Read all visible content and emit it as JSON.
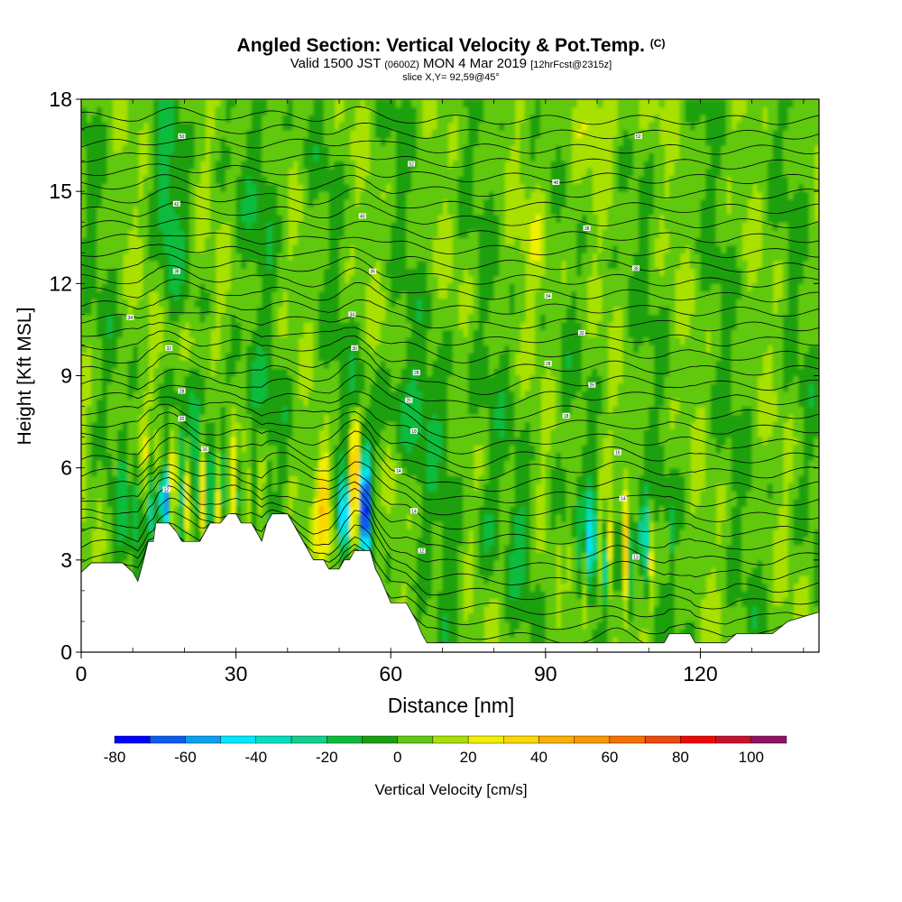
{
  "header": {
    "title": "Angled Section: Vertical Velocity & Pot.Temp.",
    "title_unit": "(C)",
    "valid_prefix": "Valid 1500 JST",
    "valid_zulu": "(0600Z)",
    "valid_date": "MON 4 Mar 2019",
    "forecast": "[12hrFcst@2315z]",
    "slice": "slice X,Y= 92,59@45°"
  },
  "chart_data": {
    "type": "heatmap",
    "xlabel": "Distance [nm]",
    "ylabel": "Height [Kft MSL]",
    "xlim": [
      0,
      143
    ],
    "ylim": [
      0,
      18
    ],
    "x_ticks": [
      "0",
      "30",
      "60",
      "90",
      "120"
    ],
    "x_tick_values": [
      0,
      30,
      60,
      90,
      120
    ],
    "y_ticks": [
      "0",
      "3",
      "6",
      "9",
      "12",
      "15",
      "18"
    ],
    "y_tick_values": [
      0,
      3,
      6,
      9,
      12,
      15,
      18
    ],
    "colorbar": {
      "label": "Vertical Velocity [cm/s]",
      "tick_labels": [
        "-80",
        "-60",
        "-40",
        "-20",
        "0",
        "20",
        "40",
        "60",
        "80",
        "100"
      ],
      "tick_values": [
        -80,
        -60,
        -40,
        -20,
        0,
        20,
        40,
        60,
        80,
        100
      ],
      "bins": [
        -80,
        -70,
        -60,
        -50,
        -40,
        -30,
        -20,
        -10,
        0,
        10,
        20,
        30,
        40,
        50,
        60,
        70,
        80,
        90,
        100,
        110
      ],
      "colors": [
        "#0000ff",
        "#0a5cf0",
        "#0aa0f0",
        "#00e8ff",
        "#00e0c0",
        "#10d090",
        "#0cbc3c",
        "#1aa010",
        "#60c810",
        "#a8e000",
        "#f0f000",
        "#fcd800",
        "#fcb000",
        "#fa9600",
        "#f57000",
        "#ef4a0e",
        "#f00808",
        "#c8102a",
        "#901464",
        "#641478"
      ]
    },
    "terrain_kft": [
      [
        0,
        2.6
      ],
      [
        2,
        2.9
      ],
      [
        4,
        2.9
      ],
      [
        6,
        2.9
      ],
      [
        8,
        2.9
      ],
      [
        10,
        2.6
      ],
      [
        11,
        2.3
      ],
      [
        12,
        2.9
      ],
      [
        13,
        3.6
      ],
      [
        14,
        3.6
      ],
      [
        14.5,
        4.2
      ],
      [
        17,
        4.2
      ],
      [
        18.5,
        3.9
      ],
      [
        19.5,
        3.6
      ],
      [
        23,
        3.6
      ],
      [
        25,
        4.2
      ],
      [
        27,
        4.2
      ],
      [
        28.5,
        4.5
      ],
      [
        30,
        4.5
      ],
      [
        31,
        4.2
      ],
      [
        33,
        4.2
      ],
      [
        34,
        3.9
      ],
      [
        35,
        3.6
      ],
      [
        36,
        4.2
      ],
      [
        37,
        4.5
      ],
      [
        40,
        4.5
      ],
      [
        41,
        4.2
      ],
      [
        42,
        3.9
      ],
      [
        43,
        3.6
      ],
      [
        44,
        3.3
      ],
      [
        45,
        3.0
      ],
      [
        47,
        3.0
      ],
      [
        48,
        2.7
      ],
      [
        50,
        2.7
      ],
      [
        51,
        3.0
      ],
      [
        52,
        3.0
      ],
      [
        53,
        3.3
      ],
      [
        56,
        3.3
      ],
      [
        57,
        2.7
      ],
      [
        58,
        2.4
      ],
      [
        59,
        2.0
      ],
      [
        60,
        1.6
      ],
      [
        63,
        1.6
      ],
      [
        64,
        1.3
      ],
      [
        65,
        1.0
      ],
      [
        66,
        0.6
      ],
      [
        67,
        0.3
      ],
      [
        70,
        0.3
      ],
      [
        90,
        0.3
      ],
      [
        110,
        0.3
      ],
      [
        113,
        0.3
      ],
      [
        114,
        0.6
      ],
      [
        118,
        0.6
      ],
      [
        119,
        0.3
      ],
      [
        125,
        0.3
      ],
      [
        127,
        0.6
      ],
      [
        134,
        0.6
      ],
      [
        137,
        1.0
      ],
      [
        143,
        1.3
      ]
    ],
    "temp_contour_labels": [
      {
        "x": 19.5,
        "y": 16.8,
        "label": "50"
      },
      {
        "x": 64,
        "y": 15.9,
        "label": "52"
      },
      {
        "x": 108,
        "y": 16.8,
        "label": "52"
      },
      {
        "x": 92,
        "y": 15.3,
        "label": "48"
      },
      {
        "x": 18.5,
        "y": 14.6,
        "label": "42"
      },
      {
        "x": 54.5,
        "y": 14.2,
        "label": "40"
      },
      {
        "x": 98,
        "y": 13.8,
        "label": "38"
      },
      {
        "x": 18.5,
        "y": 12.4,
        "label": "38"
      },
      {
        "x": 56.5,
        "y": 12.4,
        "label": "36"
      },
      {
        "x": 107.5,
        "y": 12.5,
        "label": "38"
      },
      {
        "x": 9.5,
        "y": 10.9,
        "label": "34"
      },
      {
        "x": 52.5,
        "y": 11.0,
        "label": "34"
      },
      {
        "x": 90.5,
        "y": 11.6,
        "label": "34"
      },
      {
        "x": 97,
        "y": 10.4,
        "label": "32"
      },
      {
        "x": 17,
        "y": 9.9,
        "label": "32"
      },
      {
        "x": 53,
        "y": 9.9,
        "label": "30"
      },
      {
        "x": 65,
        "y": 9.1,
        "label": "28"
      },
      {
        "x": 90.5,
        "y": 9.4,
        "label": "28"
      },
      {
        "x": 19.5,
        "y": 8.5,
        "label": "28"
      },
      {
        "x": 99,
        "y": 8.7,
        "label": "26"
      },
      {
        "x": 63.5,
        "y": 8.2,
        "label": "20"
      },
      {
        "x": 94,
        "y": 7.7,
        "label": "18"
      },
      {
        "x": 19.5,
        "y": 7.6,
        "label": "20"
      },
      {
        "x": 64.5,
        "y": 7.2,
        "label": "18"
      },
      {
        "x": 24,
        "y": 6.6,
        "label": "16"
      },
      {
        "x": 104,
        "y": 6.5,
        "label": "16"
      },
      {
        "x": 61.5,
        "y": 5.9,
        "label": "14"
      },
      {
        "x": 16.5,
        "y": 5.3,
        "label": "12"
      },
      {
        "x": 105,
        "y": 5.0,
        "label": "14"
      },
      {
        "x": 64.5,
        "y": 4.6,
        "label": "14"
      },
      {
        "x": 66,
        "y": 3.3,
        "label": "12"
      },
      {
        "x": 107.5,
        "y": 3.1,
        "label": "13"
      }
    ]
  }
}
